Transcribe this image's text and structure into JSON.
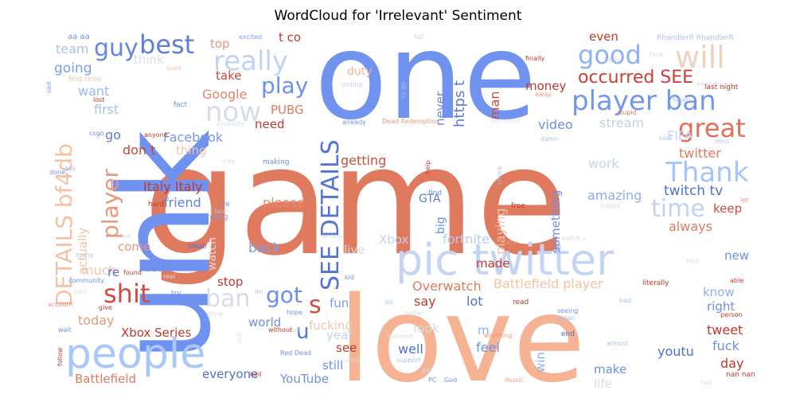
{
  "chart_data": {
    "type": "wordcloud",
    "title": "WordCloud for 'Irrelevant' Sentiment",
    "colormap": "coolwarm",
    "background": "#ffffff",
    "words": [
      {
        "text": "game",
        "weight": 1.0,
        "color": "#e07a5f"
      },
      {
        "text": "one",
        "weight": 0.8,
        "color": "#7193f0"
      },
      {
        "text": "love",
        "weight": 0.78,
        "color": "#f5b394"
      },
      {
        "text": "unk",
        "weight": 0.75,
        "color": "#6f91ef"
      },
      {
        "text": "pic twitter",
        "weight": 0.42,
        "color": "#c4d5f3"
      },
      {
        "text": "people",
        "weight": 0.38,
        "color": "#a9c7fb"
      },
      {
        "text": "best",
        "weight": 0.22,
        "color": "#5f7fd6"
      },
      {
        "text": "guy",
        "weight": 0.22,
        "color": "#6486e6"
      },
      {
        "text": "really",
        "weight": 0.2,
        "color": "#c2d3f1"
      },
      {
        "text": "player ban",
        "weight": 0.2,
        "color": "#7197ee"
      },
      {
        "text": "good",
        "weight": 0.18,
        "color": "#8fb0f8"
      },
      {
        "text": "will",
        "weight": 0.18,
        "color": "#edd1c2"
      },
      {
        "text": "great",
        "weight": 0.18,
        "color": "#e46f56"
      },
      {
        "text": "shit",
        "weight": 0.18,
        "color": "#d24b3e"
      },
      {
        "text": "play",
        "weight": 0.16,
        "color": "#6d8ff0"
      },
      {
        "text": "now",
        "weight": 0.16,
        "color": "#d6dce4"
      },
      {
        "text": "Thank",
        "weight": 0.16,
        "color": "#a6c4fa"
      },
      {
        "text": "time",
        "weight": 0.15,
        "color": "#c2d3f1"
      },
      {
        "text": "occurred SEE",
        "weight": 0.14,
        "color": "#cc3e34"
      },
      {
        "text": "DETAILS bf4db",
        "weight": 0.14,
        "color": "#f3c1a4"
      },
      {
        "text": "player",
        "weight": 0.14,
        "color": "#e8967c"
      },
      {
        "text": "SEE DETAILS",
        "weight": 0.14,
        "color": "#5473d6"
      },
      {
        "text": "ban",
        "weight": 0.14,
        "color": "#d9dde3"
      },
      {
        "text": "got",
        "weight": 0.14,
        "color": "#6e8fe9"
      },
      {
        "text": "u",
        "weight": 0.14,
        "color": "#5876db"
      },
      {
        "text": "s",
        "weight": 0.14,
        "color": "#d04a3e"
      },
      {
        "text": "team",
        "weight": 0.08,
        "color": "#a9c2ea"
      },
      {
        "text": "going",
        "weight": 0.08,
        "color": "#7b9cee"
      },
      {
        "text": "think",
        "weight": 0.08,
        "color": "#d8dee6"
      },
      {
        "text": "want",
        "weight": 0.08,
        "color": "#9ab8f5"
      },
      {
        "text": "first",
        "weight": 0.08,
        "color": "#a5c0ee"
      },
      {
        "text": "go",
        "weight": 0.08,
        "color": "#5e7fdc"
      },
      {
        "text": "Facebook",
        "weight": 0.08,
        "color": "#7797e6"
      },
      {
        "text": "Google",
        "weight": 0.08,
        "color": "#e3826b"
      },
      {
        "text": "take",
        "weight": 0.08,
        "color": "#c4473a"
      },
      {
        "text": "top",
        "weight": 0.07,
        "color": "#e9987f"
      },
      {
        "text": "t co",
        "weight": 0.07,
        "color": "#c0392b"
      },
      {
        "text": "duty",
        "weight": 0.07,
        "color": "#f0b89c"
      },
      {
        "text": "PUBG",
        "weight": 0.07,
        "color": "#e07a5f"
      },
      {
        "text": "need",
        "weight": 0.07,
        "color": "#c0392b"
      },
      {
        "text": "don t",
        "weight": 0.07,
        "color": "#c64537"
      },
      {
        "text": "thing",
        "weight": 0.07,
        "color": "#f2c5ad"
      },
      {
        "text": "Italy Italy",
        "weight": 0.08,
        "color": "#c0392b"
      },
      {
        "text": "friend",
        "weight": 0.08,
        "color": "#6281de"
      },
      {
        "text": "please",
        "weight": 0.08,
        "color": "#e78a72"
      },
      {
        "text": "getting",
        "weight": 0.08,
        "color": "#cf4b3c"
      },
      {
        "text": "even",
        "weight": 0.07,
        "color": "#c0392b"
      },
      {
        "text": "money",
        "weight": 0.07,
        "color": "#c0392b"
      },
      {
        "text": "man",
        "weight": 0.07,
        "color": "#cf4b3c"
      },
      {
        "text": "never",
        "weight": 0.07,
        "color": "#6a8ae0"
      },
      {
        "text": "https t",
        "weight": 0.08,
        "color": "#5b7ad8"
      },
      {
        "text": "video",
        "weight": 0.07,
        "color": "#6d8fe6"
      },
      {
        "text": "stream",
        "weight": 0.07,
        "color": "#c4cfe0"
      },
      {
        "text": "FIFA",
        "weight": 0.07,
        "color": "#c2d3f1"
      },
      {
        "text": "twitter",
        "weight": 0.07,
        "color": "#e07a5f"
      },
      {
        "text": "work",
        "weight": 0.07,
        "color": "#c2d3f1"
      },
      {
        "text": "something",
        "weight": 0.07,
        "color": "#6d8fe6"
      },
      {
        "text": "amazing",
        "weight": 0.07,
        "color": "#8dacf0"
      },
      {
        "text": "twitch tv",
        "weight": 0.08,
        "color": "#4f6fd4"
      },
      {
        "text": "keep",
        "weight": 0.07,
        "color": "#cf4b3c"
      },
      {
        "text": "always",
        "weight": 0.07,
        "color": "#e07a5f"
      },
      {
        "text": "new",
        "weight": 0.07,
        "color": "#6d8fe6"
      },
      {
        "text": "playing",
        "weight": 0.07,
        "color": "#f2c5ad"
      },
      {
        "text": "big",
        "weight": 0.07,
        "color": "#6a8ae0"
      },
      {
        "text": "fortnite",
        "weight": 0.07,
        "color": "#b2cbf5"
      },
      {
        "text": "lot",
        "weight": 0.07,
        "color": "#4f6fd4"
      },
      {
        "text": "say",
        "weight": 0.07,
        "color": "#c0392b"
      },
      {
        "text": "Xbox",
        "weight": 0.07,
        "color": "#c2d3f1"
      },
      {
        "text": "live",
        "weight": 0.07,
        "color": "#d6dce4"
      },
      {
        "text": "back",
        "weight": 0.07,
        "color": "#7b9cee"
      },
      {
        "text": "call",
        "weight": 0.07,
        "color": "#6d8fe6"
      },
      {
        "text": "come",
        "weight": 0.07,
        "color": "#e8967c"
      },
      {
        "text": "watch",
        "weight": 0.07,
        "color": "#d9dde3"
      },
      {
        "text": "made",
        "weight": 0.07,
        "color": "#c0392b"
      },
      {
        "text": "Overwatch",
        "weight": 0.07,
        "color": "#e07a5f"
      },
      {
        "text": "Battlefield player",
        "weight": 0.07,
        "color": "#f3c1a4"
      },
      {
        "text": "know",
        "weight": 0.07,
        "color": "#8daef0"
      },
      {
        "text": "right",
        "weight": 0.07,
        "color": "#6d8fe6"
      },
      {
        "text": "stop",
        "weight": 0.07,
        "color": "#c0392b"
      },
      {
        "text": "fun",
        "weight": 0.07,
        "color": "#7b9cee"
      },
      {
        "text": "world",
        "weight": 0.07,
        "color": "#6d8fe6"
      },
      {
        "text": "fucking",
        "weight": 0.07,
        "color": "#f2c5ad"
      },
      {
        "text": "year",
        "weight": 0.07,
        "color": "#c2d3f1"
      },
      {
        "text": "look",
        "weight": 0.07,
        "color": "#d6dce4"
      },
      {
        "text": "feel",
        "weight": 0.07,
        "color": "#6d8fe6"
      },
      {
        "text": "win",
        "weight": 0.07,
        "color": "#8daef0"
      },
      {
        "text": "make",
        "weight": 0.07,
        "color": "#6d8fe6"
      },
      {
        "text": "life",
        "weight": 0.07,
        "color": "#d6dce4"
      },
      {
        "text": "tweet",
        "weight": 0.07,
        "color": "#c0392b"
      },
      {
        "text": "fuck",
        "weight": 0.07,
        "color": "#6d8fe6"
      },
      {
        "text": "day",
        "weight": 0.07,
        "color": "#c0392b"
      },
      {
        "text": "youtu",
        "weight": 0.07,
        "color": "#4f6fd4"
      },
      {
        "text": "much",
        "weight": 0.07,
        "color": "#f2c5ad"
      },
      {
        "text": "re",
        "weight": 0.07,
        "color": "#4f6fd4"
      },
      {
        "text": "actually",
        "weight": 0.07,
        "color": "#f3c1a4"
      },
      {
        "text": "today",
        "weight": 0.07,
        "color": "#e8967c"
      },
      {
        "text": "Xbox Series",
        "weight": 0.07,
        "color": "#c0392b"
      },
      {
        "text": "Battlefield",
        "weight": 0.07,
        "color": "#e07a5f"
      },
      {
        "text": "everyone",
        "weight": 0.07,
        "color": "#4f6fd4"
      },
      {
        "text": "YouTube",
        "weight": 0.07,
        "color": "#6d8fe6"
      },
      {
        "text": "still",
        "weight": 0.07,
        "color": "#6d8fe6"
      },
      {
        "text": "see",
        "weight": 0.07,
        "color": "#c0392b"
      },
      {
        "text": "well",
        "weight": 0.07,
        "color": "#4f6fd4"
      },
      {
        "text": "GTA",
        "weight": 0.06,
        "color": "#5b7ad8"
      },
      {
        "text": "m",
        "weight": 0.06,
        "color": "#8daef0"
      },
      {
        "text": "aa aa",
        "weight": 0.03,
        "color": "#6d8fe6"
      },
      {
        "text": "excited",
        "weight": 0.03,
        "color": "#7b9cee"
      },
      {
        "text": "full",
        "weight": 0.03,
        "color": "#c2d3f1"
      },
      {
        "text": "bit ly",
        "weight": 0.03,
        "color": "#c2d3f1"
      },
      {
        "text": "RhandlerR RhandlerR",
        "weight": 0.035,
        "color": "#a9c2ea"
      },
      {
        "text": "face",
        "weight": 0.03,
        "color": "#d6dce4"
      },
      {
        "text": "finally",
        "weight": 0.03,
        "color": "#c0392b"
      },
      {
        "text": "everything",
        "weight": 0.03,
        "color": "#d6dce4"
      },
      {
        "text": "last night",
        "weight": 0.03,
        "color": "#c0392b"
      },
      {
        "text": "taken",
        "weight": 0.03,
        "color": "#a9c2ea"
      },
      {
        "text": "first time",
        "weight": 0.03,
        "color": "#f2c5ad"
      },
      {
        "text": "sad",
        "weight": 0.03,
        "color": "#7b9cee"
      },
      {
        "text": "used",
        "weight": 0.03,
        "color": "#f2c5ad"
      },
      {
        "text": "lost",
        "weight": 0.03,
        "color": "#c0392b"
      },
      {
        "text": "fact",
        "weight": 0.03,
        "color": "#6d8fe6"
      },
      {
        "text": "online",
        "weight": 0.03,
        "color": "#c2d3f1"
      },
      {
        "text": "cs go",
        "weight": 0.03,
        "color": "#a9c2ea"
      },
      {
        "text": "away",
        "weight": 0.03,
        "color": "#e8967c"
      },
      {
        "text": "csgo",
        "weight": 0.03,
        "color": "#6d8fe6"
      },
      {
        "text": "already",
        "weight": 0.03,
        "color": "#6d8fe6"
      },
      {
        "text": "Dead Redemption",
        "weight": 0.03,
        "color": "#e8967c"
      },
      {
        "text": "someone",
        "weight": 0.03,
        "color": "#d6dce4"
      },
      {
        "text": "damn",
        "weight": 0.03,
        "color": "#a9c2ea"
      },
      {
        "text": "stupid",
        "weight": 0.03,
        "color": "#e07a5f"
      },
      {
        "text": "said",
        "weight": 0.03,
        "color": "#a9c2ea"
      },
      {
        "text": "miss",
        "weight": 0.03,
        "color": "#a9c2ea"
      },
      {
        "text": "anyone",
        "weight": 0.03,
        "color": "#c0392b"
      },
      {
        "text": "probably",
        "weight": 0.03,
        "color": "#d6dce4"
      },
      {
        "text": "done",
        "weight": 0.03,
        "color": "#6d8fe6"
      },
      {
        "text": "tell",
        "weight": 0.03,
        "color": "#a9c2ea"
      },
      {
        "text": "may",
        "weight": 0.03,
        "color": "#d6dce4"
      },
      {
        "text": "making",
        "weight": 0.03,
        "color": "#6d8fe6"
      },
      {
        "text": "help",
        "weight": 0.03,
        "color": "#c0392b"
      },
      {
        "text": "check",
        "weight": 0.03,
        "color": "#a9c2ea"
      },
      {
        "text": "find",
        "weight": 0.03,
        "color": "#6d8fe6"
      },
      {
        "text": "free",
        "weight": 0.03,
        "color": "#c0392b"
      },
      {
        "text": "happy",
        "weight": 0.03,
        "color": "#d6dce4"
      },
      {
        "text": "let",
        "weight": 0.03,
        "color": "#e8967c"
      },
      {
        "text": "hard",
        "weight": 0.03,
        "color": "#c0392b"
      },
      {
        "text": "ve",
        "weight": 0.03,
        "color": "#6d8fe6"
      },
      {
        "text": "fan",
        "weight": 0.03,
        "color": "#a9c2ea"
      },
      {
        "text": "trying",
        "weight": 0.03,
        "color": "#7b9cee"
      },
      {
        "text": "use",
        "weight": 0.03,
        "color": "#d6dce4"
      },
      {
        "text": "bf4db",
        "weight": 0.03,
        "color": "#4f6fd4"
      },
      {
        "text": "access",
        "weight": 0.03,
        "color": "#d6dce4"
      },
      {
        "text": "watch v",
        "weight": 0.03,
        "color": "#d6dce4"
      },
      {
        "text": "crazy",
        "weight": 0.03,
        "color": "#e8967c"
      },
      {
        "text": "nice",
        "weight": 0.03,
        "color": "#d6dce4"
      },
      {
        "text": "many",
        "weight": 0.03,
        "color": "#a9c2ea"
      },
      {
        "text": "found",
        "weight": 0.03,
        "color": "#c0392b"
      },
      {
        "text": "community",
        "weight": 0.03,
        "color": "#6d8fe6"
      },
      {
        "text": "real",
        "weight": 0.03,
        "color": "#d6dce4"
      },
      {
        "text": "kid",
        "weight": 0.03,
        "color": "#6d8fe6"
      },
      {
        "text": "literally",
        "weight": 0.03,
        "color": "#c0392b"
      },
      {
        "text": "able",
        "weight": 0.03,
        "color": "#c0392b"
      },
      {
        "text": "try",
        "weight": 0.03,
        "color": "#6d8fe6"
      },
      {
        "text": "im",
        "weight": 0.03,
        "color": "#a9c2ea"
      },
      {
        "text": "part",
        "weight": 0.03,
        "color": "#d6dce4"
      },
      {
        "text": "account",
        "weight": 0.03,
        "color": "#e8967c"
      },
      {
        "text": "give",
        "weight": 0.03,
        "color": "#c0392b"
      },
      {
        "text": "show",
        "weight": 0.03,
        "color": "#d6dce4"
      },
      {
        "text": "hope",
        "weight": 0.03,
        "color": "#6d8fe6"
      },
      {
        "text": "lol",
        "weight": 0.03,
        "color": "#a9c2ea"
      },
      {
        "text": "read",
        "weight": 0.03,
        "color": "#c0392b"
      },
      {
        "text": "seeing",
        "weight": 0.03,
        "color": "#6d8fe6"
      },
      {
        "text": "bad",
        "weight": 0.03,
        "color": "#a9c2ea"
      },
      {
        "text": "person",
        "weight": 0.03,
        "color": "#c0392b"
      },
      {
        "text": "better",
        "weight": 0.03,
        "color": "#d6dce4"
      },
      {
        "text": "mean",
        "weight": 0.03,
        "color": "#a9c2ea"
      },
      {
        "text": "wait",
        "weight": 0.03,
        "color": "#6d8fe6"
      },
      {
        "text": "without",
        "weight": 0.03,
        "color": "#c0392b"
      },
      {
        "text": "next",
        "weight": 0.03,
        "color": "#d6dce4"
      },
      {
        "text": "anything",
        "weight": 0.03,
        "color": "#e8967c"
      },
      {
        "text": "end",
        "weight": 0.03,
        "color": "#4f6fd4"
      },
      {
        "text": "almost",
        "weight": 0.03,
        "color": "#a9c2ea"
      },
      {
        "text": "put",
        "weight": 0.03,
        "color": "#d6dce4"
      },
      {
        "text": "banned",
        "weight": 0.03,
        "color": "#d6dce4"
      },
      {
        "text": "Red Dead",
        "weight": 0.03,
        "color": "#6d8fe6"
      },
      {
        "text": "using",
        "weight": 0.03,
        "color": "#d6dce4"
      },
      {
        "text": "support",
        "weight": 0.03,
        "color": "#a9c2ea"
      },
      {
        "text": "follow",
        "weight": 0.03,
        "color": "#c0392b"
      },
      {
        "text": "hell",
        "weight": 0.03,
        "color": "#c0392b"
      },
      {
        "text": "girl",
        "weight": 0.03,
        "color": "#d6dce4"
      },
      {
        "text": "PC",
        "weight": 0.03,
        "color": "#6d8fe6"
      },
      {
        "text": "God",
        "weight": 0.03,
        "color": "#6d8fe6"
      },
      {
        "text": "music",
        "weight": 0.03,
        "color": "#e8967c"
      },
      {
        "text": "two",
        "weight": 0.03,
        "color": "#d6dce4"
      },
      {
        "text": "nan nan",
        "weight": 0.03,
        "color": "#c0392b"
      }
    ]
  }
}
